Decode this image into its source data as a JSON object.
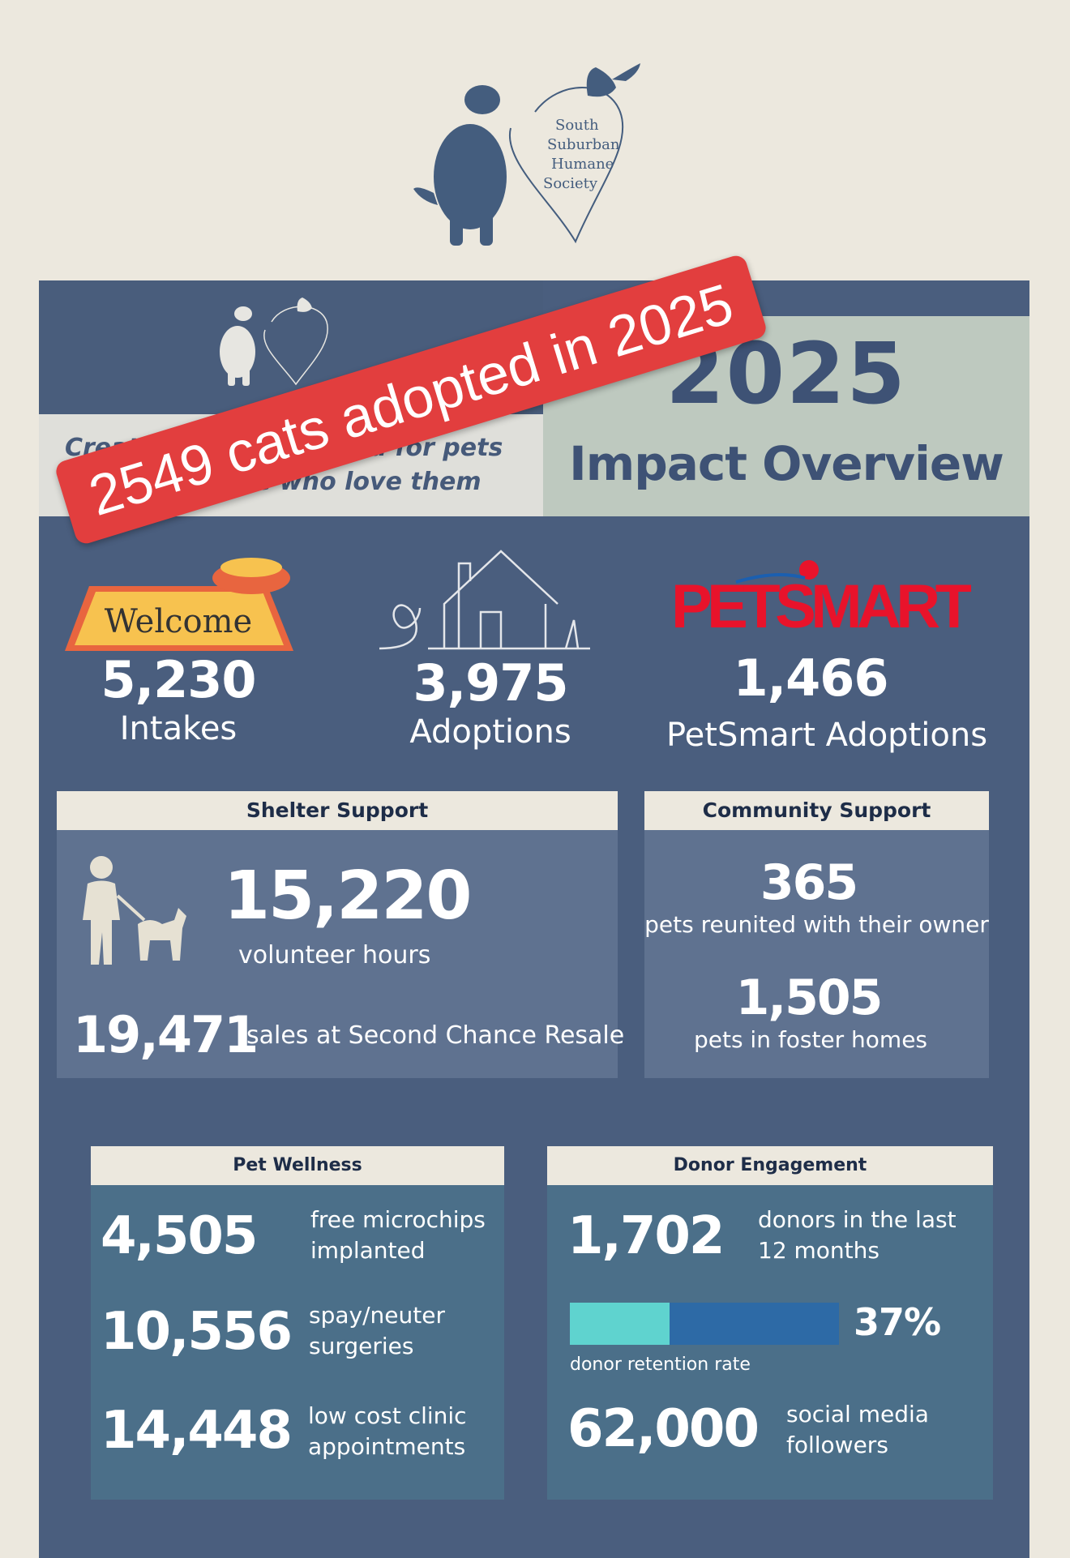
{
  "logo": {
    "lines": [
      "South",
      "Suburban",
      "Humane",
      "Society"
    ]
  },
  "banner": "2549 cats adopted in 2025",
  "header": {
    "tagline": "Creating a better world for pets\nand the people who love them",
    "year": "2025",
    "title": "Impact Overview"
  },
  "icons": {
    "welcome_mat_text": "Welcome",
    "petsmart_logo": "PETSMART"
  },
  "top_stats": [
    {
      "value": "5,230",
      "label": "Intakes",
      "icon": "welcome-mat-icon"
    },
    {
      "value": "3,975",
      "label": "Adoptions",
      "icon": "house-heart-icon"
    },
    {
      "value": "1,466",
      "label": "PetSmart Adoptions",
      "icon": "petsmart-logo"
    }
  ],
  "shelter_support": {
    "title": "Shelter Support",
    "volunteer_value": "15,220",
    "volunteer_label": "volunteer hours",
    "sales_value": "19,471",
    "sales_label": "sales at Second Chance Resale"
  },
  "community_support": {
    "title": "Community Support",
    "reunited_value": "365",
    "reunited_label": "pets reunited with their owner",
    "foster_value": "1,505",
    "foster_label": "pets in foster homes"
  },
  "pet_wellness": {
    "title": "Pet Wellness",
    "items": [
      {
        "value": "4,505",
        "label": "free microchips\nimplanted"
      },
      {
        "value": "10,556",
        "label": "spay/neuter\nsurgeries"
      },
      {
        "value": "14,448",
        "label": "low cost clinic\nappointments"
      }
    ]
  },
  "donor_engagement": {
    "title": "Donor Engagement",
    "donors_value": "1,702",
    "donors_label": "donors in the last\n12 months",
    "retention_pct": 37,
    "retention_text": "37%",
    "retention_label": "donor retention rate",
    "social_value": "62,000",
    "social_label": "social media\nfollowers"
  },
  "colors": {
    "page_bg": "#ece8de",
    "poster_bg": "#4a5e7e",
    "banner": "#e23e3e",
    "accent_teal": "#5fd3cf",
    "accent_blue": "#2d6aa6"
  }
}
